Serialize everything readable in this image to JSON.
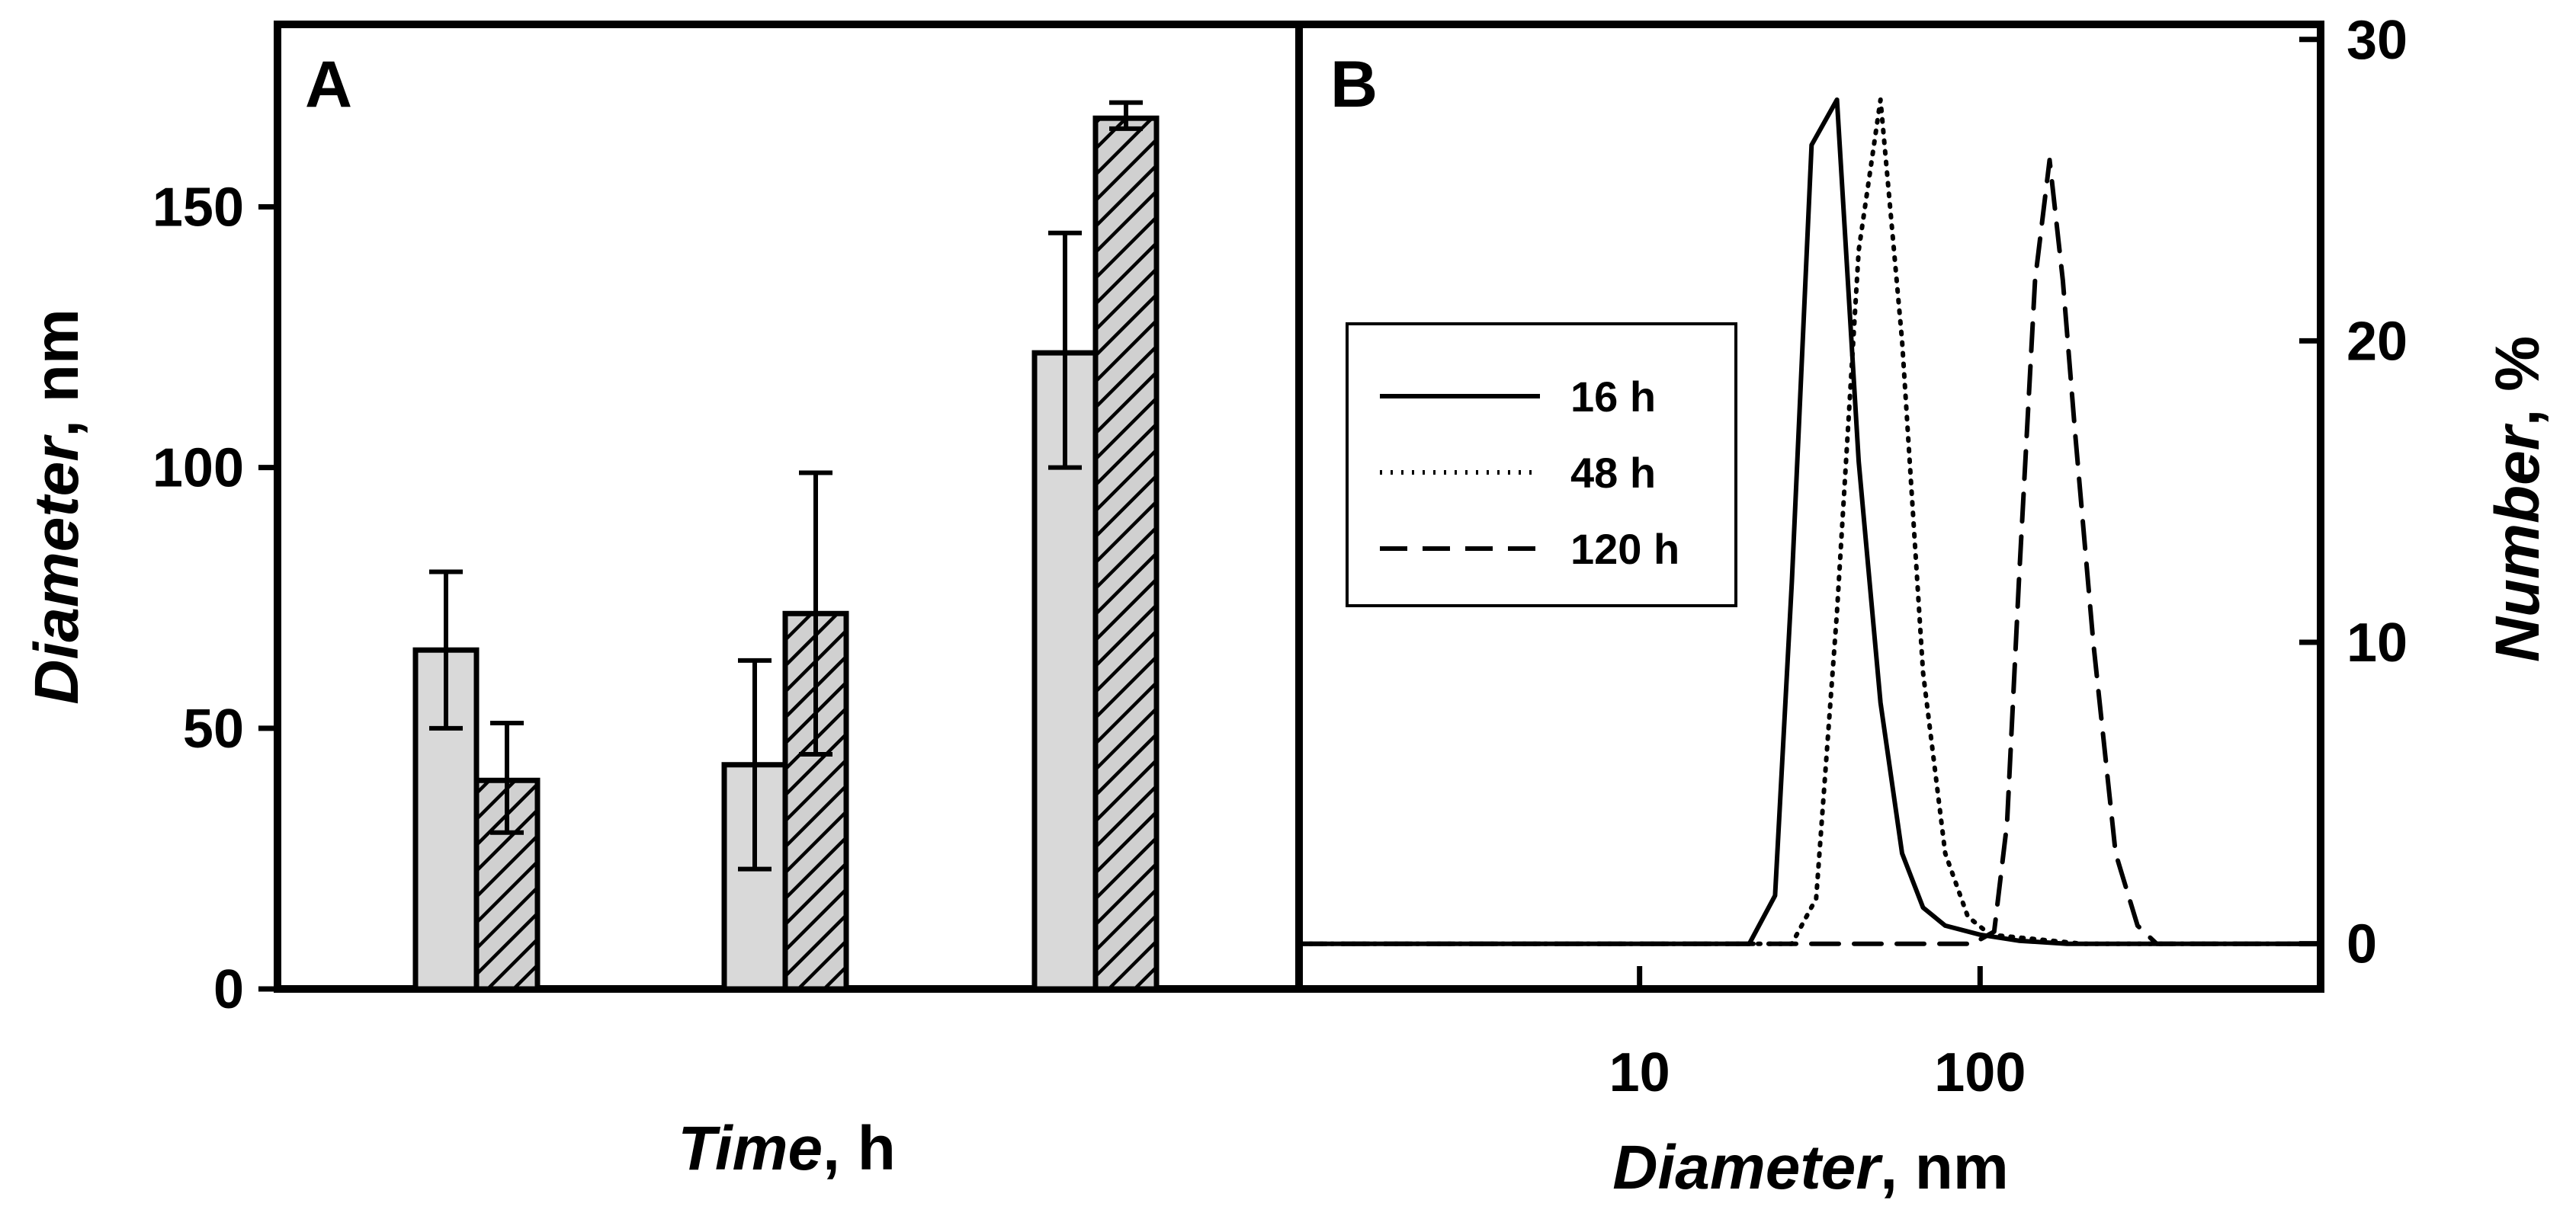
{
  "chart_data": [
    {
      "panel": "A",
      "type": "bar",
      "xlabel": "Time",
      "xlabel_unit": ", h",
      "ylabel": "Diameter",
      "ylabel_unit": ", nm",
      "ylim": [
        0,
        185
      ],
      "yticks": [
        "0",
        "50",
        "100",
        "150"
      ],
      "groups": [
        {
          "bars": [
            {
              "style": "plain",
              "value": 65,
              "err_low": 50,
              "err_high": 80
            },
            {
              "style": "hatched",
              "value": 40,
              "err_low": 30,
              "err_high": 51
            }
          ]
        },
        {
          "bars": [
            {
              "style": "plain",
              "value": 43,
              "err_low": 23,
              "err_high": 63
            },
            {
              "style": "hatched",
              "value": 72,
              "err_low": 45,
              "err_high": 99
            }
          ]
        },
        {
          "bars": [
            {
              "style": "plain",
              "value": 122,
              "err_low": 100,
              "err_high": 145
            },
            {
              "style": "hatched",
              "value": 167,
              "err_low": 165,
              "err_high": 170
            }
          ]
        }
      ],
      "colors": {
        "plain": "#d9d9d9",
        "hatched": "#cfcfcf"
      }
    },
    {
      "panel": "B",
      "type": "line",
      "xscale": "log",
      "xlim": [
        1,
        1000
      ],
      "xticks": [
        "10",
        "100"
      ],
      "xlabel": "Diameter",
      "xlabel_unit": ", nm",
      "ylabel": "Number",
      "ylabel_unit": ", %",
      "ylim": [
        -1.5,
        30.5
      ],
      "yticks": [
        "0",
        "10",
        "20",
        "30"
      ],
      "legend_position": "upper-left",
      "series": [
        {
          "name": "16 h",
          "dash": "solid",
          "x": [
            1,
            21,
            25,
            28,
            32,
            38,
            44,
            51,
            59,
            68,
            79,
            100,
            130,
            180,
            300,
            1000
          ],
          "y": [
            0,
            0,
            1.6,
            12,
            26.5,
            28,
            16,
            8,
            3,
            1.2,
            0.6,
            0.3,
            0.1,
            0,
            0,
            0
          ]
        },
        {
          "name": "48 h",
          "dash": "dotted",
          "x": [
            1,
            28,
            33,
            38,
            44,
            51,
            59,
            68,
            79,
            92,
            107,
            200,
            400,
            1000
          ],
          "y": [
            0,
            0,
            1.5,
            11,
            23,
            28,
            20,
            9,
            3,
            0.9,
            0.3,
            0,
            0,
            0
          ]
        },
        {
          "name": "120 h",
          "dash": "dashed",
          "x": [
            1,
            95,
            110,
            120,
            130,
            145,
            160,
            175,
            190,
            215,
            250,
            290,
            330,
            1000
          ],
          "y": [
            0,
            0,
            0.4,
            4,
            12,
            22,
            26,
            22,
            17,
            10,
            3,
            0.6,
            0,
            0
          ]
        }
      ]
    }
  ]
}
